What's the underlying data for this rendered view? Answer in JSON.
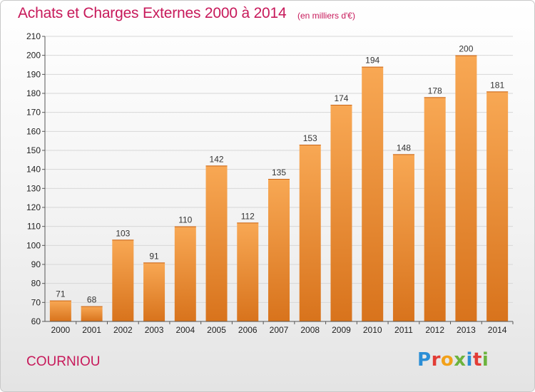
{
  "header": {
    "title": "Achats et Charges Externes 2000 à 2014",
    "subtitle": "(en milliers d'€)"
  },
  "footer": {
    "commune": "COURNIOU",
    "logo_letters": [
      "P",
      "r",
      "o",
      "x",
      "i",
      "t",
      "i"
    ]
  },
  "colors": {
    "title": "#c7195a",
    "bar_top": "#f8a854",
    "bar_bottom": "#d8731c",
    "grid": "#d7d7d7"
  },
  "chart_data": {
    "type": "bar",
    "title": "Achats et Charges Externes 2000 à 2014",
    "subtitle": "(en milliers d'€)",
    "xlabel": "",
    "ylabel": "",
    "categories": [
      "2000",
      "2001",
      "2002",
      "2003",
      "2004",
      "2005",
      "2006",
      "2007",
      "2008",
      "2009",
      "2010",
      "2011",
      "2012",
      "2013",
      "2014"
    ],
    "values": [
      71,
      68,
      103,
      91,
      110,
      142,
      112,
      135,
      153,
      174,
      194,
      148,
      178,
      200,
      181
    ],
    "ylim": [
      60,
      210
    ],
    "yticks": [
      60,
      70,
      80,
      90,
      100,
      110,
      120,
      130,
      140,
      150,
      160,
      170,
      180,
      190,
      200,
      210
    ],
    "grid": true,
    "data_labels": true
  }
}
